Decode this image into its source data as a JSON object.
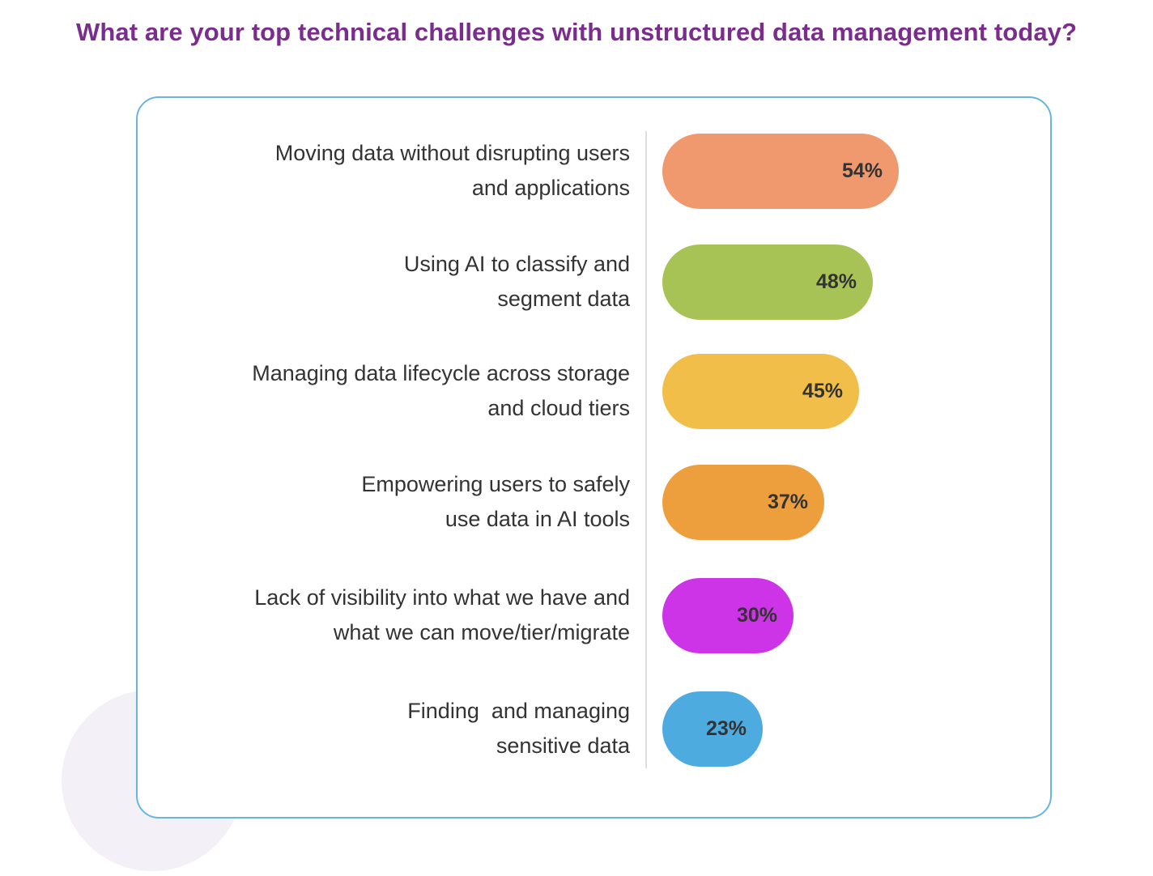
{
  "title": "What are your top technical challenges with unstructured data management today?",
  "chart_data": {
    "type": "bar",
    "orientation": "horizontal",
    "title": "What are your top technical challenges with unstructured data management today?",
    "categories": [
      [
        "Moving data without disrupting users",
        "and applications"
      ],
      [
        "Using AI to classify and",
        "segment data"
      ],
      [
        "Managing data lifecycle across storage",
        "and cloud tiers"
      ],
      [
        "Empowering users to safely",
        "use data in AI tools"
      ],
      [
        "Lack of visibility into what we have and",
        "what we can move/tier/migrate"
      ],
      [
        "Finding  and managing",
        "sensitive data"
      ]
    ],
    "values": [
      54,
      48,
      45,
      37,
      30,
      23
    ],
    "value_labels": [
      "54%",
      "48%",
      "45%",
      "37%",
      "30%",
      "23%"
    ],
    "colors": [
      "#f0996e",
      "#a8c355",
      "#f2be4a",
      "#ed9f3e",
      "#cd34e8",
      "#4eabe0"
    ],
    "xlim": [
      0,
      54
    ],
    "grid": false,
    "legend": "none"
  }
}
